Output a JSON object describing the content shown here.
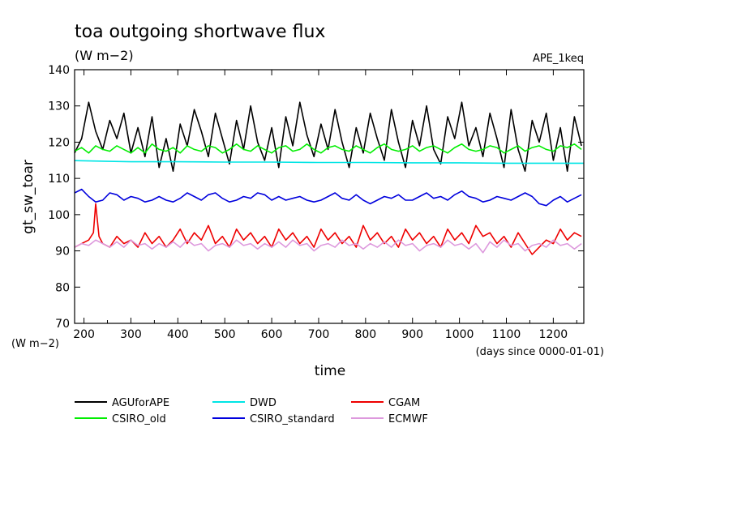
{
  "chart_data": {
    "type": "line",
    "title": "toa outgoing shortwave flux",
    "subtitle": "(W m−2)",
    "experiment": "APE_1keq",
    "xlabel": "time",
    "x_units": "(days since 0000-01-01)",
    "ylabel": "gt_sw_toar",
    "y_units": "(W m−2)",
    "xlim": [
      180,
      1265
    ],
    "ylim": [
      70,
      140
    ],
    "x_ticks": [
      200,
      300,
      400,
      500,
      600,
      700,
      800,
      900,
      1000,
      1100,
      1200
    ],
    "y_ticks": [
      70,
      80,
      90,
      100,
      110,
      120,
      130,
      140
    ],
    "legend_position": "bottom",
    "grid": false,
    "series": [
      {
        "name": "AGUforAPE",
        "color": "#000000",
        "x": [
          180,
          195,
          210,
          225,
          240,
          255,
          270,
          285,
          300,
          315,
          330,
          345,
          360,
          375,
          390,
          405,
          420,
          435,
          450,
          465,
          480,
          495,
          510,
          525,
          540,
          555,
          570,
          585,
          600,
          615,
          630,
          645,
          660,
          675,
          690,
          705,
          720,
          735,
          750,
          765,
          780,
          795,
          810,
          825,
          840,
          855,
          870,
          885,
          900,
          915,
          930,
          945,
          960,
          975,
          990,
          1005,
          1020,
          1035,
          1050,
          1065,
          1080,
          1095,
          1110,
          1125,
          1140,
          1155,
          1170,
          1185,
          1200,
          1215,
          1230,
          1245,
          1260
        ],
        "y": [
          117,
          121,
          131,
          123,
          118,
          126,
          121,
          128,
          117,
          124,
          116,
          127,
          113,
          121,
          112,
          125,
          119,
          129,
          123,
          116,
          128,
          121,
          114,
          126,
          118,
          130,
          120,
          115,
          124,
          113,
          127,
          119,
          131,
          122,
          116,
          125,
          118,
          129,
          120,
          113,
          124,
          117,
          128,
          121,
          115,
          129,
          120,
          113,
          126,
          119,
          130,
          118,
          114,
          127,
          121,
          131,
          119,
          124,
          116,
          128,
          121,
          113,
          129,
          118,
          112,
          126,
          120,
          128,
          115,
          124,
          112,
          127,
          119
        ]
      },
      {
        "name": "CSIRO_old",
        "color": "#00ee00",
        "x": [
          180,
          195,
          210,
          225,
          240,
          255,
          270,
          285,
          300,
          315,
          330,
          345,
          360,
          375,
          390,
          405,
          420,
          435,
          450,
          465,
          480,
          495,
          510,
          525,
          540,
          555,
          570,
          585,
          600,
          615,
          630,
          645,
          660,
          675,
          690,
          705,
          720,
          735,
          750,
          765,
          780,
          795,
          810,
          825,
          840,
          855,
          870,
          885,
          900,
          915,
          930,
          945,
          960,
          975,
          990,
          1005,
          1020,
          1035,
          1050,
          1065,
          1080,
          1095,
          1110,
          1125,
          1140,
          1155,
          1170,
          1185,
          1200,
          1215,
          1230,
          1245,
          1260
        ],
        "y": [
          117.5,
          118.5,
          117,
          119,
          118,
          117.5,
          119,
          118,
          117,
          118.5,
          117,
          119.5,
          118,
          117.5,
          118.5,
          117,
          119,
          118,
          117.5,
          119,
          118.5,
          117,
          118,
          119.5,
          118,
          117.5,
          119,
          118,
          117,
          118.5,
          119,
          117.5,
          118,
          119.5,
          118,
          117,
          118.5,
          119,
          118,
          117.5,
          119,
          118,
          117,
          118.5,
          119.5,
          118,
          117.5,
          118,
          119,
          117.5,
          118.5,
          119,
          118,
          117,
          118.5,
          119.5,
          118,
          117.5,
          118,
          119,
          118.5,
          117,
          118,
          119,
          117.5,
          118.5,
          119,
          118,
          117.5,
          119,
          118.5,
          119.5,
          118
        ]
      },
      {
        "name": "DWD",
        "color": "#00e5e5",
        "x": [
          180,
          300,
          400,
          500,
          600,
          700,
          800,
          900,
          1000,
          1100,
          1200,
          1265
        ],
        "y": [
          114.9,
          114.6,
          114.6,
          114.5,
          114.5,
          114.4,
          114.4,
          114.3,
          114.3,
          114.2,
          114.2,
          114.2
        ]
      },
      {
        "name": "CSIRO_standard",
        "color": "#0000dd",
        "x": [
          180,
          195,
          210,
          225,
          240,
          255,
          270,
          285,
          300,
          315,
          330,
          345,
          360,
          375,
          390,
          405,
          420,
          435,
          450,
          465,
          480,
          495,
          510,
          525,
          540,
          555,
          570,
          585,
          600,
          615,
          630,
          645,
          660,
          675,
          690,
          705,
          720,
          735,
          750,
          765,
          780,
          795,
          810,
          825,
          840,
          855,
          870,
          885,
          900,
          915,
          930,
          945,
          960,
          975,
          990,
          1005,
          1020,
          1035,
          1050,
          1065,
          1080,
          1095,
          1110,
          1125,
          1140,
          1155,
          1170,
          1185,
          1200,
          1215,
          1230,
          1245,
          1260
        ],
        "y": [
          106,
          107,
          105,
          103.5,
          104,
          106,
          105.5,
          104,
          105,
          104.5,
          103.5,
          104,
          105,
          104,
          103.5,
          104.5,
          106,
          105,
          104,
          105.5,
          106,
          104.5,
          103.5,
          104,
          105,
          104.5,
          106,
          105.5,
          104,
          105,
          104,
          104.5,
          105,
          104,
          103.5,
          104,
          105,
          106,
          104.5,
          104,
          105.5,
          104,
          103,
          104,
          105,
          104.5,
          105.5,
          104,
          104,
          105,
          106,
          104.5,
          105,
          104,
          105.5,
          106.5,
          105,
          104.5,
          103.5,
          104,
          105,
          104.5,
          104,
          105,
          106,
          105,
          103,
          102.5,
          104,
          105,
          103.5,
          104.5,
          105.5
        ]
      },
      {
        "name": "CGAM",
        "color": "#ee0000",
        "x": [
          180,
          195,
          210,
          220,
          225,
          232,
          240,
          255,
          270,
          285,
          300,
          315,
          330,
          345,
          360,
          375,
          390,
          405,
          420,
          435,
          450,
          465,
          480,
          495,
          510,
          525,
          540,
          555,
          570,
          585,
          600,
          615,
          630,
          645,
          660,
          675,
          690,
          705,
          720,
          735,
          750,
          765,
          780,
          795,
          810,
          825,
          840,
          855,
          870,
          885,
          900,
          915,
          930,
          945,
          960,
          975,
          990,
          1005,
          1020,
          1035,
          1050,
          1065,
          1080,
          1095,
          1110,
          1125,
          1140,
          1155,
          1170,
          1185,
          1200,
          1215,
          1230,
          1245,
          1260
        ],
        "y": [
          91,
          92,
          93,
          95,
          103,
          94,
          92,
          91,
          94,
          92,
          93,
          91,
          95,
          92,
          94,
          91,
          93,
          96,
          92,
          95,
          93,
          97,
          92,
          94,
          91,
          96,
          93,
          95,
          92,
          94,
          91,
          96,
          93,
          95,
          92,
          94,
          91,
          96,
          93,
          95,
          92,
          94,
          91,
          97,
          93,
          95,
          92,
          94,
          91,
          96,
          93,
          95,
          92,
          94,
          91,
          96,
          93,
          95,
          92,
          97,
          94,
          95,
          92,
          94,
          91,
          95,
          92,
          89,
          91,
          93,
          92,
          96,
          93,
          95,
          94
        ]
      },
      {
        "name": "ECMWF",
        "color": "#dd99dd",
        "x": [
          180,
          195,
          210,
          225,
          240,
          255,
          270,
          285,
          300,
          315,
          330,
          345,
          360,
          375,
          390,
          405,
          420,
          435,
          450,
          465,
          480,
          495,
          510,
          525,
          540,
          555,
          570,
          585,
          600,
          615,
          630,
          645,
          660,
          675,
          690,
          705,
          720,
          735,
          750,
          765,
          780,
          795,
          810,
          825,
          840,
          855,
          870,
          885,
          900,
          915,
          930,
          945,
          960,
          975,
          990,
          1005,
          1020,
          1035,
          1050,
          1065,
          1080,
          1095,
          1110,
          1125,
          1140,
          1155,
          1170,
          1185,
          1200,
          1215,
          1230,
          1245,
          1260
        ],
        "y": [
          91,
          92,
          91.5,
          93,
          92,
          91,
          92.5,
          91,
          93,
          91.5,
          92,
          90.5,
          92,
          91,
          92.5,
          91,
          93,
          91.5,
          92,
          90,
          91.5,
          92,
          91,
          93,
          91.5,
          92,
          90.5,
          92,
          91,
          92.5,
          91,
          93,
          91.5,
          92,
          90,
          91.5,
          92,
          91,
          93,
          91.5,
          92,
          90.5,
          92,
          91,
          92.5,
          91,
          93,
          91.5,
          92,
          90,
          91.5,
          92,
          91,
          93,
          91.5,
          92,
          90.5,
          92,
          89.5,
          92.5,
          91,
          93,
          91.5,
          92,
          90,
          91.5,
          92,
          91,
          93,
          91.5,
          92,
          90.5,
          92
        ]
      }
    ]
  }
}
